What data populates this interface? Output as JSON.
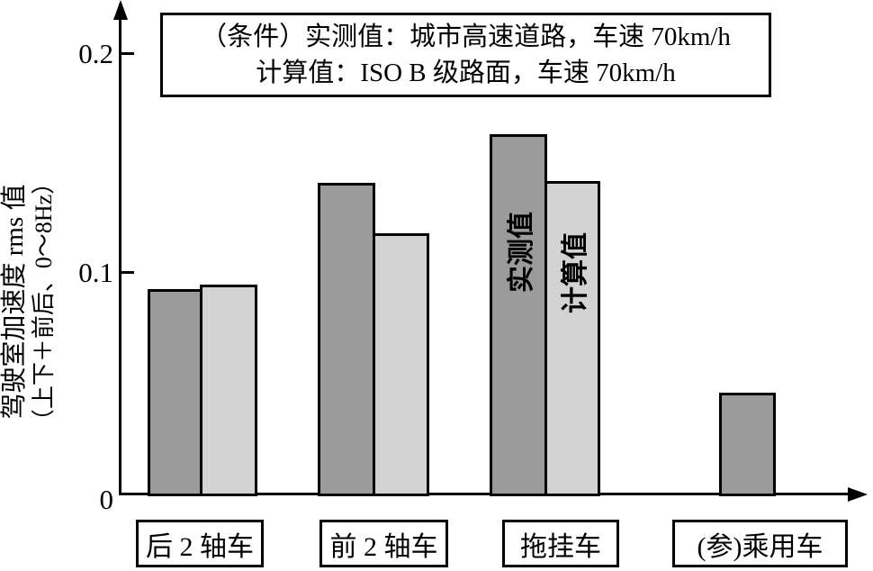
{
  "chart_data": {
    "type": "bar",
    "title": "",
    "categories": [
      "后 2 轴车",
      "前 2 轴车",
      "拖挂车",
      "(参)乘用车"
    ],
    "series": [
      {
        "name": "实测值",
        "color": "#9b9b9b",
        "values": [
          0.094,
          0.142,
          0.164,
          0.047
        ]
      },
      {
        "name": "计算值",
        "color": "#d3d3d3",
        "values": [
          0.096,
          0.119,
          0.143,
          null
        ]
      }
    ],
    "bar_inner_labels": [
      "实测值",
      "计算值"
    ],
    "ylabel": [
      "驾驶室加速度 rms 值",
      "（上下＋前后、0～8Hz）"
    ],
    "yticks": [
      0.2,
      0.1,
      0
    ],
    "ytick_labels": [
      "0.2",
      "0.1",
      "0"
    ],
    "ylim": [
      0,
      0.225
    ],
    "grid": false,
    "legend_position": "none",
    "condition_note": {
      "line1": "（条件）实测值：城市高速道路，车速 70km/h",
      "line2": "计算值：ISO B 级路面，车速 70km/h"
    },
    "axis_color": "#000000",
    "background_color": "#ffffff"
  }
}
